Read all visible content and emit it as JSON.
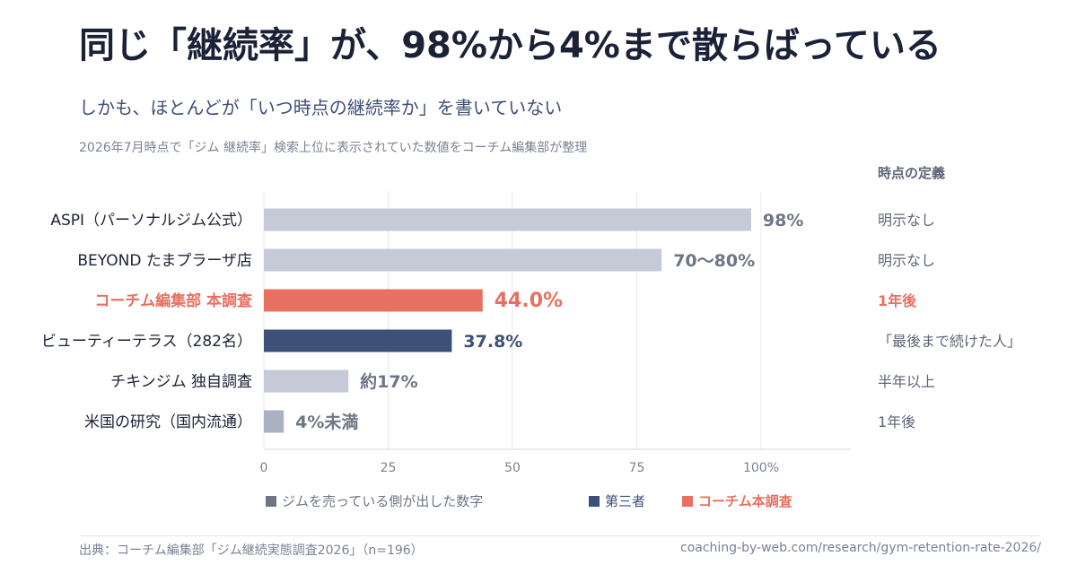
{
  "title": "同じ「継続率」が、98%から4%まで散らばっている",
  "subtitle": "しかも、ほとんどが「いつ時点の継続率か」を書いていない",
  "note": "2026年7月時点で「ジム 継続率」検索上位に表示されていた数値をコーチム編集部が整理",
  "definition_header": "時点の定義",
  "chart_data": {
    "type": "bar",
    "orientation": "horizontal",
    "xlim": [
      0,
      118
    ],
    "x_ticks": [
      0,
      25,
      50,
      75,
      100
    ],
    "x_tick_labels": [
      "0",
      "25",
      "50",
      "75",
      "100%"
    ],
    "grid": true,
    "categories": [
      "ASPI（パーソナルジム公式）",
      "BEYOND たまプラーザ店",
      "コーチム編集部 本調査",
      "ビューティーテラス（282名）",
      "チキンジム 独自調査",
      "米国の研究（国内流通）"
    ],
    "values": [
      98,
      80,
      44.0,
      37.8,
      17,
      4
    ],
    "value_labels": [
      "98%",
      "70〜80%",
      "44.0%",
      "37.8%",
      "約17%",
      "4%未満"
    ],
    "groups": [
      "self",
      "self",
      "own",
      "third",
      "self",
      "third_light"
    ],
    "definitions": [
      "明示なし",
      "明示なし",
      "1年後",
      "「最後まで続けた人」",
      "半年以上",
      "1年後"
    ],
    "legend": [
      {
        "label": "ジムを売っている側が出した数字",
        "color": "#6e7585"
      },
      {
        "label": "第三者",
        "color": "#3d5077"
      },
      {
        "label": "コーチム本調査",
        "color": "#e87060"
      }
    ],
    "colors": {
      "self_bar": "#c5cad6",
      "own_bar": "#e87060",
      "third_bar": "#3d5077",
      "third_light_bar": "#aab1c0",
      "self_text": "#6e7585",
      "own_text": "#e87060",
      "third_text": "#3d5077"
    }
  },
  "source": "出典：コーチム編集部「ジム継続実態調査2026」（n=196）",
  "url": "coaching-by-web.com/research/gym-retention-rate-2026/"
}
